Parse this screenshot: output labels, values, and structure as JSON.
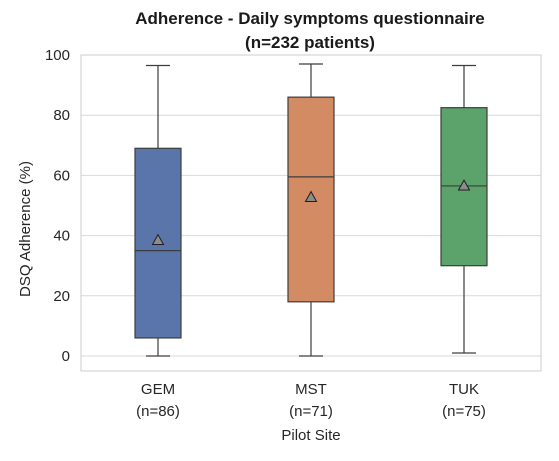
{
  "chart_data": {
    "type": "box",
    "title": [
      "Adherence - Daily symptoms questionnaire",
      "(n=232 patients)"
    ],
    "xlabel": "Pilot Site",
    "ylabel": "DSQ Adherence (%)",
    "ylim": [
      -5,
      100
    ],
    "yticks": [
      0,
      20,
      40,
      60,
      80,
      100
    ],
    "grid": true,
    "categories": [
      {
        "name": "GEM",
        "n_label": "(n=86)",
        "color": "#5975a9"
      },
      {
        "name": "MST",
        "n_label": "(n=71)",
        "color": "#d38b63"
      },
      {
        "name": "TUK",
        "n_label": "(n=75)",
        "color": "#5ca26b"
      }
    ],
    "boxes": [
      {
        "category": "GEM",
        "min": 0,
        "q1": 6,
        "median": 35,
        "q3": 69,
        "max": 96.5,
        "mean": 38.5
      },
      {
        "category": "MST",
        "min": 0,
        "q1": 18,
        "median": 59.5,
        "q3": 86,
        "max": 97,
        "mean": 52.8
      },
      {
        "category": "TUK",
        "min": 1,
        "q1": 30,
        "median": 56.5,
        "q3": 82.5,
        "max": 96.5,
        "mean": 56.6
      }
    ],
    "mean_marker": "triangle"
  }
}
